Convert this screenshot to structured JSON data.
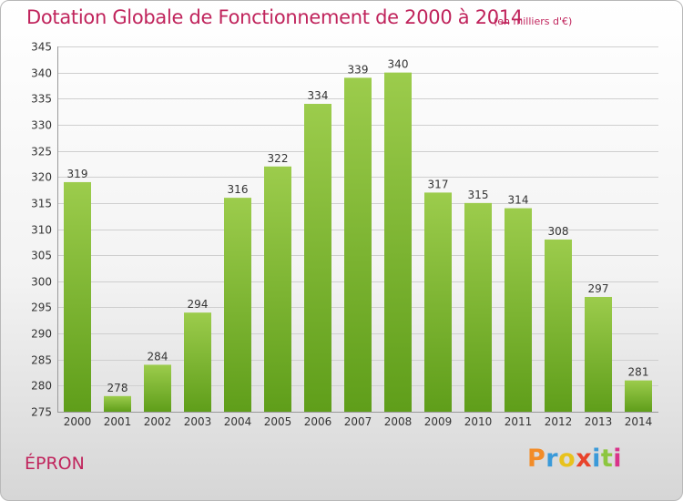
{
  "title": "Dotation Globale de Fonctionnement de 2000 à 2014",
  "subtitle": "(en milliers d'€)",
  "commune": "ÉPRON",
  "brand": {
    "letters": [
      "P",
      "r",
      "o",
      "x",
      "i",
      "t",
      "i"
    ],
    "colors": [
      "#f28c28",
      "#3a9ad9",
      "#e8c21c",
      "#e8432b",
      "#3a9ad9",
      "#8cc63f",
      "#d9338a"
    ]
  },
  "colors": {
    "title": "#c0245c",
    "bar_top": "#9ccc4c",
    "bar_bottom": "#5f9e1a",
    "grid": "#cfcfcf"
  },
  "chart_data": {
    "type": "bar",
    "title": "Dotation Globale de Fonctionnement de 2000 à 2014",
    "subtitle": "(en milliers d'€)",
    "xlabel": "",
    "ylabel": "",
    "categories": [
      "2000",
      "2001",
      "2002",
      "2003",
      "2004",
      "2005",
      "2006",
      "2007",
      "2008",
      "2009",
      "2010",
      "2011",
      "2012",
      "2013",
      "2014"
    ],
    "values": [
      319,
      278,
      284,
      294,
      316,
      322,
      334,
      339,
      340,
      317,
      315,
      314,
      308,
      297,
      281
    ],
    "ylim": [
      275,
      345
    ],
    "yticks": [
      275,
      280,
      285,
      290,
      295,
      300,
      305,
      310,
      315,
      320,
      325,
      330,
      335,
      340,
      345
    ],
    "grid": true,
    "legend": "none"
  }
}
